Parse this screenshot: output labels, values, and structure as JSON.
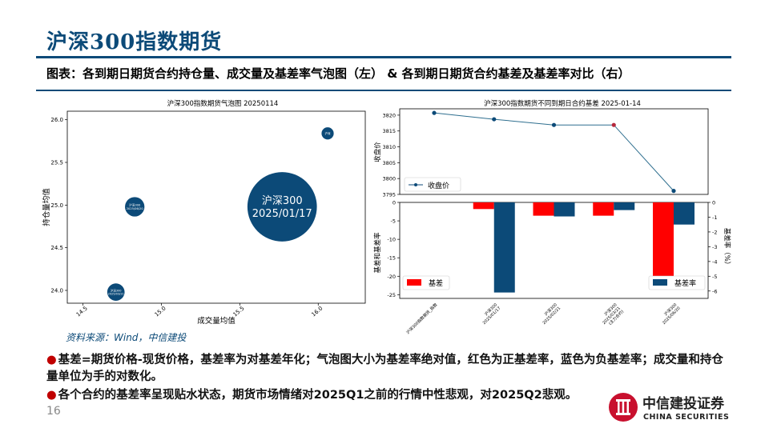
{
  "header": {
    "title": "沪深300指数期货",
    "subtitle": "图表：各到期日期货合约持仓量、成交量及基差率气泡图（左） & 各到期日期货合约基差及基差率对比（右）"
  },
  "footer": {
    "source": "资料来源：Wind，中信建投",
    "bullets": [
      "基差=期货价格-现货价格，基差率为对基差年化；气泡图大小为基差率绝对值，红色为正基差率，蓝色为负基差率；成交量和持仓量单位为手的对数化。",
      "各个合约的基差率呈现贴水状态，期货市场情绪对2025Q1之前的行情中性悲观，对2025Q2悲观。"
    ],
    "page_number": "16",
    "logo_cn": "中信建投证券",
    "logo_en": "CHINA SECURITIES"
  },
  "colors": {
    "navy": "#0c4a78",
    "red": "#ff0000",
    "bubble": "#0c4a78"
  },
  "chart_data": [
    {
      "type": "scatter",
      "title": "沪深300指数期货气泡图 20250114",
      "xlabel": "成交量均值",
      "ylabel": "持仓量均值",
      "xlim": [
        14.4,
        16.3
      ],
      "ylim": [
        23.85,
        26.1
      ],
      "xticks": [
        14.5,
        15.0,
        15.5,
        16.0
      ],
      "xtick_labels": [
        "14.5",
        "15.0",
        "15.5",
        "16.0"
      ],
      "yticks": [
        24.0,
        24.5,
        25.0,
        25.5,
        26.0
      ],
      "ytick_labels": [
        "24.0",
        "24.5",
        "25.0",
        "25.5",
        "26.0"
      ],
      "points": [
        {
          "x": 16.06,
          "y": 25.84,
          "size": 0.4,
          "label1": "沪深",
          "label2": ""
        },
        {
          "x": 15.77,
          "y": 24.98,
          "size": 5.9,
          "label1": "沪深300",
          "label2": "2025/01/17"
        },
        {
          "x": 14.83,
          "y": 24.98,
          "size": 1.1,
          "label1": "沪深300",
          "label2": "2025/06/20"
        },
        {
          "x": 14.71,
          "y": 23.98,
          "size": 0.9,
          "label1": "沪深300",
          "label2": "2025/03/21"
        }
      ]
    },
    {
      "type": "line",
      "title": "沪深300指数期货不同到期日合约基差  2025-01-14",
      "ylabel": "收盘价",
      "legend": "收盘价",
      "ylim": [
        3795,
        3822
      ],
      "yticks": [
        3795,
        3800,
        3805,
        3810,
        3815,
        3820
      ],
      "ytick_labels": [
        "3795",
        "3800",
        "3805",
        "3810",
        "3815",
        "3820"
      ],
      "values": [
        3820.7,
        3818.7,
        3816.9,
        3816.9,
        3796.1
      ],
      "marker_colors": [
        "#0c4a78",
        "#0c4a78",
        "#0c4a78",
        "#b5283c",
        "#0c4a78"
      ]
    },
    {
      "type": "bar",
      "categories": [
        "沪深300指数期货_指数",
        "沪深300\n2025/01/17",
        "沪深300\n2025/02/21",
        "沪深300\n2025/03/21\n(主力合约)",
        "沪深300\n2025/06/20"
      ],
      "ylabel_left": "基差和基差率",
      "ylabel_right": "基差率（%）",
      "ylim_left": [
        -26,
        0
      ],
      "yticks_left": [
        0,
        -5,
        -10,
        -15,
        -20,
        -25
      ],
      "ytick_labels_left": [
        "0",
        "-5",
        "-10",
        "-15",
        "-20",
        "-25"
      ],
      "ylim_right": [
        -6.5,
        0
      ],
      "yticks_right": [
        0,
        -1,
        -2,
        -3,
        -4,
        -5,
        -6
      ],
      "ytick_labels_right": [
        "0",
        "-1",
        "-2",
        "-3",
        "-4",
        "-5",
        "-6"
      ],
      "series": [
        {
          "name": "基差",
          "values": [
            0,
            -1.8,
            -3.6,
            -3.6,
            -22.0
          ]
        },
        {
          "name": "基差率",
          "values": [
            0,
            -6.1,
            -0.95,
            -0.52,
            -1.5
          ]
        }
      ]
    }
  ]
}
